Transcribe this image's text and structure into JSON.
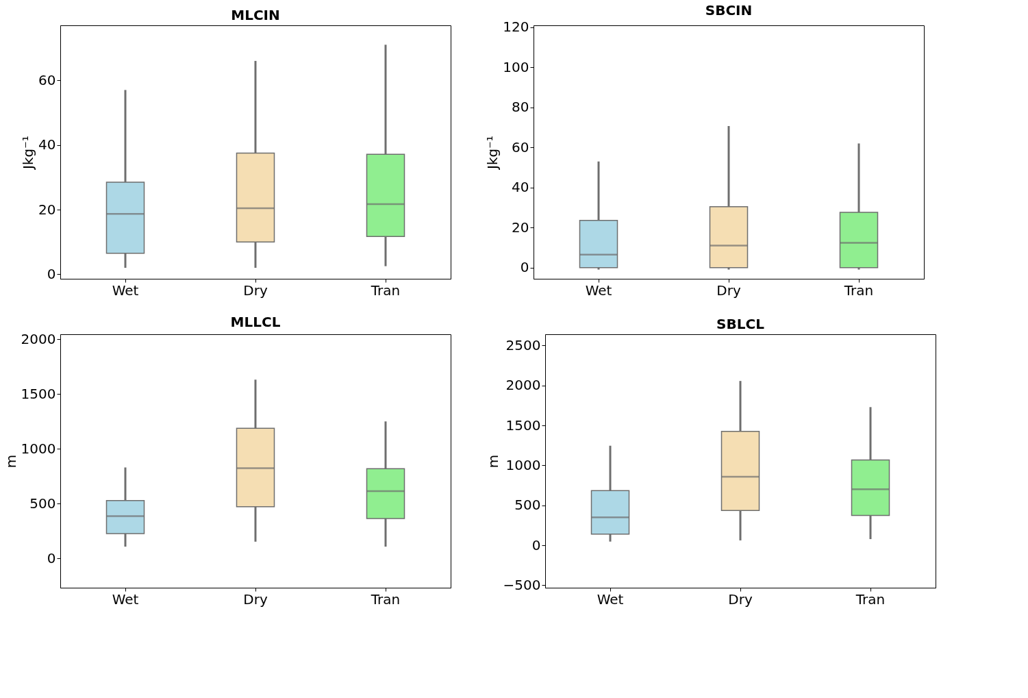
{
  "chart_data": [
    {
      "type": "box",
      "title": "MLCIN",
      "ylabel": "Jkg⁻¹",
      "categories": [
        "Wet",
        "Dry",
        "Tran"
      ],
      "colors": [
        "#add8e6",
        "#f5deb3",
        "#90ee90"
      ],
      "ylim": [
        -1.4,
        77
      ],
      "yticks": [
        0,
        20,
        40,
        60
      ],
      "grid": false,
      "boxes": [
        {
          "low": 2,
          "q1": 6.5,
          "median": 18.7,
          "q3": 28.5,
          "high": 57
        },
        {
          "low": 2,
          "q1": 10,
          "median": 20.4,
          "q3": 37.5,
          "high": 66
        },
        {
          "low": 2.5,
          "q1": 11.7,
          "median": 21.7,
          "q3": 37.1,
          "high": 71
        }
      ]
    },
    {
      "type": "box",
      "title": "SBCIN",
      "ylabel": "Jkg⁻¹",
      "categories": [
        "Wet",
        "Dry",
        "Tran"
      ],
      "colors": [
        "#add8e6",
        "#f5deb3",
        "#90ee90"
      ],
      "ylim": [
        -5.6,
        121
      ],
      "yticks": [
        0,
        20,
        40,
        60,
        80,
        100,
        120
      ],
      "grid": false,
      "boxes": [
        {
          "low": -1,
          "q1": 0,
          "median": 6.5,
          "q3": 23.6,
          "high": 53
        },
        {
          "low": -1,
          "q1": 0,
          "median": 11,
          "q3": 30.4,
          "high": 70.7
        },
        {
          "low": -1,
          "q1": 0,
          "median": 12.4,
          "q3": 27.6,
          "high": 62
        }
      ]
    },
    {
      "type": "box",
      "title": "MLLCL",
      "ylabel": "m",
      "categories": [
        "Wet",
        "Dry",
        "Tran"
      ],
      "colors": [
        "#add8e6",
        "#f5deb3",
        "#90ee90"
      ],
      "ylim": [
        -267,
        2045
      ],
      "yticks": [
        0,
        500,
        1000,
        1500,
        2000
      ],
      "grid": false,
      "boxes": [
        {
          "low": 108,
          "q1": 227,
          "median": 386,
          "q3": 528,
          "high": 830
        },
        {
          "low": 153,
          "q1": 472,
          "median": 824,
          "q3": 1188,
          "high": 1631
        },
        {
          "low": 108,
          "q1": 364,
          "median": 614,
          "q3": 818,
          "high": 1250
        }
      ]
    },
    {
      "type": "box",
      "title": "SBLCL",
      "ylabel": "m",
      "categories": [
        "Wet",
        "Dry",
        "Tran"
      ],
      "colors": [
        "#add8e6",
        "#f5deb3",
        "#90ee90"
      ],
      "ylim": [
        -530,
        2640
      ],
      "yticks": [
        -500,
        0,
        500,
        1000,
        1500,
        2000,
        2500
      ],
      "grid": false,
      "boxes": [
        {
          "low": 47,
          "q1": 140,
          "median": 350,
          "q3": 685,
          "high": 1246
        },
        {
          "low": 62,
          "q1": 436,
          "median": 857,
          "q3": 1425,
          "high": 2056
        },
        {
          "low": 78,
          "q1": 374,
          "median": 701,
          "q3": 1067,
          "high": 1729
        }
      ]
    }
  ]
}
